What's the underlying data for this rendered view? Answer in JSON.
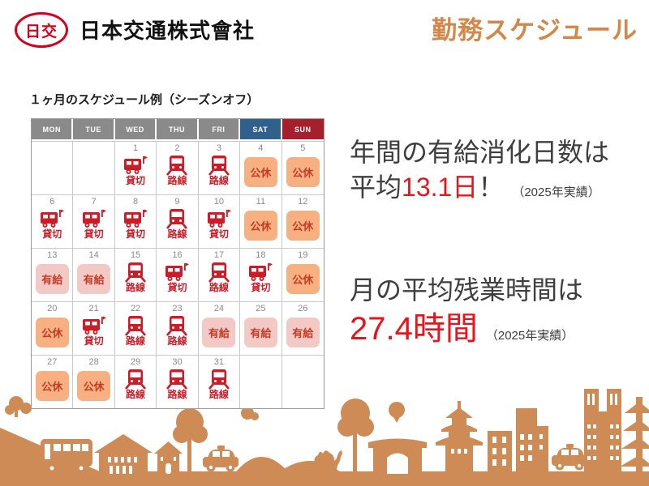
{
  "header": {
    "logo_text": "日交",
    "company_name": "日本交通株式會社",
    "page_title": "勤務スケジュール"
  },
  "calendar": {
    "caption": "１ヶ月のスケジュール例（シーズンオフ）",
    "day_headers": [
      {
        "label": "MON",
        "color": "#8A8A8A"
      },
      {
        "label": "TUE",
        "color": "#8A8A8A"
      },
      {
        "label": "WED",
        "color": "#8A8A8A"
      },
      {
        "label": "THU",
        "color": "#8A8A8A"
      },
      {
        "label": "FRI",
        "color": "#8A8A8A"
      },
      {
        "label": "SAT",
        "color": "#30618D"
      },
      {
        "label": "SUN",
        "color": "#A51F2D"
      }
    ],
    "weeks": [
      [
        {
          "date": "",
          "type": "empty"
        },
        {
          "date": "",
          "type": "empty"
        },
        {
          "date": "1",
          "type": "charter",
          "label": "貸切"
        },
        {
          "date": "2",
          "type": "route",
          "label": "路線"
        },
        {
          "date": "3",
          "type": "route",
          "label": "路線"
        },
        {
          "date": "4",
          "type": "holiday",
          "label": "公休"
        },
        {
          "date": "5",
          "type": "holiday",
          "label": "公休"
        }
      ],
      [
        {
          "date": "6",
          "type": "charter",
          "label": "貸切"
        },
        {
          "date": "7",
          "type": "charter",
          "label": "貸切"
        },
        {
          "date": "8",
          "type": "charter",
          "label": "貸切"
        },
        {
          "date": "9",
          "type": "route",
          "label": "路線"
        },
        {
          "date": "10",
          "type": "charter",
          "label": "貸切"
        },
        {
          "date": "11",
          "type": "holiday",
          "label": "公休"
        },
        {
          "date": "12",
          "type": "holiday",
          "label": "公休"
        }
      ],
      [
        {
          "date": "13",
          "type": "paid_leave",
          "label": "有給"
        },
        {
          "date": "14",
          "type": "paid_leave",
          "label": "有給"
        },
        {
          "date": "15",
          "type": "route",
          "label": "路線"
        },
        {
          "date": "16",
          "type": "charter",
          "label": "貸切"
        },
        {
          "date": "17",
          "type": "route",
          "label": "路線"
        },
        {
          "date": "18",
          "type": "charter",
          "label": "貸切"
        },
        {
          "date": "19",
          "type": "holiday",
          "label": "公休"
        }
      ],
      [
        {
          "date": "20",
          "type": "holiday",
          "label": "公休"
        },
        {
          "date": "21",
          "type": "charter",
          "label": "貸切"
        },
        {
          "date": "22",
          "type": "route",
          "label": "路線"
        },
        {
          "date": "23",
          "type": "route",
          "label": "路線"
        },
        {
          "date": "24",
          "type": "paid_leave",
          "label": "有給"
        },
        {
          "date": "25",
          "type": "paid_leave",
          "label": "有給"
        },
        {
          "date": "26",
          "type": "paid_leave",
          "label": "有給"
        }
      ],
      [
        {
          "date": "27",
          "type": "holiday",
          "label": "公休"
        },
        {
          "date": "28",
          "type": "holiday",
          "label": "公休"
        },
        {
          "date": "29",
          "type": "route",
          "label": "路線"
        },
        {
          "date": "30",
          "type": "route",
          "label": "路線"
        },
        {
          "date": "31",
          "type": "route",
          "label": "路線"
        },
        {
          "date": "",
          "type": "empty"
        },
        {
          "date": "",
          "type": "empty"
        }
      ]
    ]
  },
  "stats": [
    {
      "line1": "年間の有給消化日数は",
      "line2_prefix": "平均",
      "value": "13.1日",
      "suffix": "！",
      "note": "（2025年実績）"
    },
    {
      "line1": "月の平均残業時間は",
      "line2_prefix": "",
      "value": "27.4時間",
      "suffix": "",
      "note": "（2025年実績）"
    }
  ],
  "colors": {
    "brand_red": "#D6001C",
    "title_orange": "#D2884A",
    "duty_red": "#CC1C28",
    "holiday_chip_bg": "#F6B081",
    "paid_leave_chip_bg": "#F3C9C5",
    "chip_text": "#C43B25",
    "sat_header": "#30618D",
    "sun_header": "#A51F2D",
    "weekday_header": "#8A8A8A",
    "stat_text": "#3E3E3E",
    "stat_value_red": "#E8141C",
    "skyline_orange": "#CE8B55"
  }
}
